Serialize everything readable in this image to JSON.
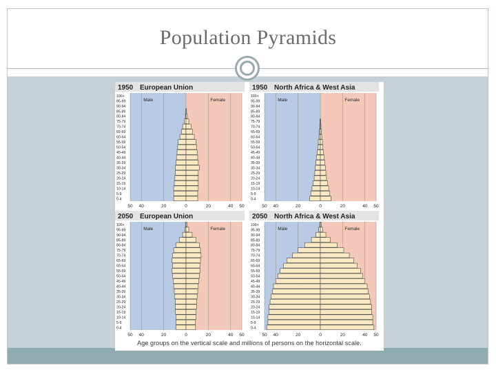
{
  "slide": {
    "title": "Population Pyramids",
    "caption": "Age groups on the vertical scale and millions of persons on the horizontal scale."
  },
  "colors": {
    "male_bg": "#b9cbe4",
    "female_bg": "#f5c9b9",
    "bar_fill": "#f8e9c3",
    "bar_stroke": "#4a4a4a",
    "header_bg": "#e3e3e3",
    "slide_band": "#c6d1d6",
    "footer_band": "#8eabae"
  },
  "chart_data": [
    {
      "type": "bar",
      "year": "1950",
      "region": "European Union",
      "male_label": "Male",
      "female_label": "Female",
      "categories": [
        "100+",
        "95-99",
        "90-94",
        "85-89",
        "80-84",
        "75-79",
        "70-74",
        "65-69",
        "60-64",
        "55-59",
        "50-54",
        "45-49",
        "40-44",
        "35-39",
        "30-34",
        "25-29",
        "20-24",
        "15-19",
        "10-14",
        "5-9",
        "0-4"
      ],
      "series": [
        {
          "name": "Male",
          "values": [
            0,
            0,
            0,
            0.2,
            0.5,
            1.5,
            3,
            4,
            5.5,
            7,
            7.5,
            8,
            8.5,
            9,
            9.5,
            9.5,
            10,
            10.5,
            11,
            11,
            11
          ]
        },
        {
          "name": "Female",
          "values": [
            0,
            0,
            0,
            0.5,
            1.2,
            2.5,
            4.5,
            6,
            7.5,
            9,
            9.5,
            10,
            10.5,
            11,
            12,
            11,
            11,
            11,
            11,
            10.5,
            10.5
          ]
        }
      ],
      "xticks": [
        "50",
        "40",
        "20",
        "0",
        "20",
        "40",
        "50"
      ],
      "xlim": [
        -50,
        50
      ]
    },
    {
      "type": "bar",
      "year": "1950",
      "region": "North Africa & West Asia",
      "male_label": "Male",
      "female_label": "Female",
      "categories": [
        "100+",
        "95-99",
        "90-94",
        "85-89",
        "80-84",
        "75-79",
        "70-74",
        "65-69",
        "60-64",
        "55-59",
        "50-54",
        "45-49",
        "40-44",
        "35-39",
        "30-34",
        "25-29",
        "20-24",
        "15-19",
        "10-14",
        "5-9",
        "0-4"
      ],
      "series": [
        {
          "name": "Male",
          "values": [
            0,
            0,
            0,
            0,
            0,
            0.3,
            0.5,
            0.8,
            1.2,
            1.8,
            2.2,
            2.8,
            3.5,
            4,
            4.5,
            5,
            5.5,
            6.5,
            7.5,
            8.5,
            9.5
          ]
        },
        {
          "name": "Female",
          "values": [
            0,
            0,
            0,
            0,
            0,
            0.3,
            0.6,
            0.9,
            1.3,
            1.9,
            2.3,
            2.9,
            3.5,
            4,
            4.5,
            5,
            5.5,
            6.5,
            7.5,
            8.5,
            9.5
          ]
        }
      ],
      "xticks": [
        "50",
        "40",
        "20",
        "0",
        "20",
        "40",
        "50"
      ],
      "xlim": [
        -50,
        50
      ]
    },
    {
      "type": "bar",
      "year": "2050",
      "region": "European Union",
      "male_label": "Male",
      "female_label": "Female",
      "categories": [
        "100+",
        "95-99",
        "90-94",
        "85-89",
        "80-84",
        "75-79",
        "70-74",
        "65-69",
        "60-64",
        "55-59",
        "50-54",
        "45-49",
        "40-44",
        "35-39",
        "30-34",
        "25-29",
        "20-24",
        "15-19",
        "10-14",
        "5-9",
        "0-4"
      ],
      "series": [
        {
          "name": "Male",
          "values": [
            0.3,
            1,
            3,
            6,
            9,
            11,
            12,
            12.5,
            12,
            12.5,
            12,
            11.5,
            11,
            10.5,
            10,
            9.5,
            9.5,
            9.5,
            9,
            9,
            9
          ]
        },
        {
          "name": "Female",
          "values": [
            0.8,
            2.5,
            5.5,
            9,
            12,
            13,
            13.5,
            13,
            12.5,
            12.5,
            12,
            11.5,
            11,
            10.5,
            10,
            9.5,
            9.5,
            9,
            9,
            8.5,
            8.5
          ]
        }
      ],
      "xticks": [
        "50",
        "40",
        "20",
        "0",
        "20",
        "40",
        "50"
      ],
      "xlim": [
        -50,
        50
      ]
    },
    {
      "type": "bar",
      "year": "2050",
      "region": "North Africa & West Asia",
      "male_label": "Male",
      "female_label": "Female",
      "categories": [
        "100+",
        "95-99",
        "90-94",
        "85-89",
        "80-84",
        "75-79",
        "70-74",
        "65-69",
        "60-64",
        "55-59",
        "50-54",
        "45-49",
        "40-44",
        "35-39",
        "30-34",
        "25-29",
        "20-24",
        "15-19",
        "10-14",
        "5-9",
        "0-4"
      ],
      "series": [
        {
          "name": "Male",
          "values": [
            0.5,
            1.5,
            4,
            8,
            14,
            20,
            25,
            30,
            33,
            36,
            38,
            40,
            42,
            43,
            44,
            45,
            46,
            46,
            47,
            47,
            48
          ]
        },
        {
          "name": "Female",
          "values": [
            0.8,
            2,
            5,
            9,
            15,
            21,
            26,
            30,
            33,
            36,
            38,
            40,
            42,
            43,
            44,
            45,
            46,
            46,
            47,
            47,
            48
          ]
        }
      ],
      "xticks": [
        "50",
        "40",
        "20",
        "0",
        "20",
        "40",
        "50"
      ],
      "xlim": [
        -50,
        50
      ]
    }
  ]
}
